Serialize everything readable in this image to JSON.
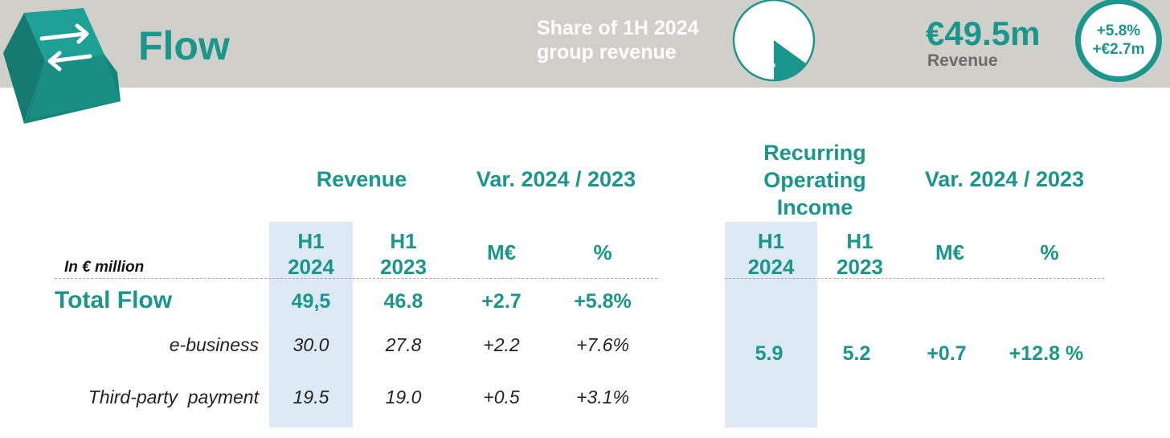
{
  "header": {
    "title": "Flow",
    "share_label_line1": "Share of 1H 2024",
    "share_label_line2": "group revenue",
    "share_pct_label": "15%",
    "share_pct_value": 15,
    "revenue_value": "€49.5m",
    "revenue_label": "Revenue",
    "badge_line1": "+5.8%",
    "badge_line2": "+€2.7m",
    "accent_color": "#1a968c"
  },
  "table": {
    "unit_label": "In € million",
    "revenue_section": "Revenue",
    "var_section_left": "Var. 2024 / 2023",
    "roi_section_line1": "Recurring",
    "roi_section_line2": "Operating",
    "roi_section_line3": "Income",
    "var_section_right": "Var. 2024 / 2023",
    "cols": {
      "h1_2024_a": "H1",
      "h1_2024_b": "2024",
      "h1_2023_a": "H1",
      "h1_2023_b": "2023",
      "meur": "M€",
      "pct": "%"
    },
    "total": {
      "label": "Total Flow",
      "rev_2024": "49,5",
      "rev_2023": "46.8",
      "var_m": "+2.7",
      "var_pct": "+5.8%"
    },
    "ebusiness": {
      "label": "e-business",
      "rev_2024": "30.0",
      "rev_2023": "27.8",
      "var_m": "+2.2",
      "var_pct": "+7.6%"
    },
    "thirdparty": {
      "label": "Third-party  payment",
      "rev_2024": "19.5",
      "rev_2023": "19.0",
      "var_m": "+0.5",
      "var_pct": "+3.1%"
    },
    "roi": {
      "h1_2024": "5.9",
      "h1_2023": "5.2",
      "var_m": "+0.7",
      "var_pct": "+12.8 %"
    }
  }
}
